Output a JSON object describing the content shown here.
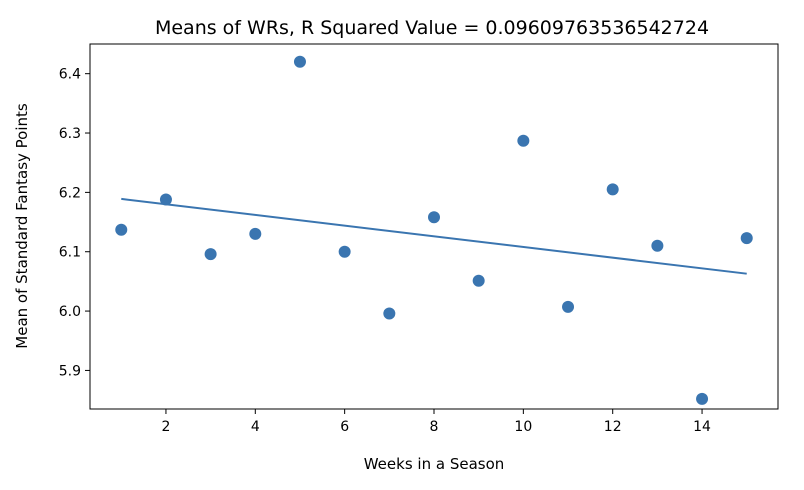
{
  "chart_data": {
    "type": "scatter",
    "title": "Means of WRs, R Squared Value = 0.09609763536542724",
    "xlabel": "Weeks in a Season",
    "ylabel": "Mean of Standard Fantasy Points",
    "xlim": [
      0.3,
      15.7
    ],
    "ylim": [
      5.835,
      6.45
    ],
    "x_ticks": [
      2,
      4,
      6,
      8,
      10,
      12,
      14
    ],
    "y_ticks": [
      5.9,
      6.0,
      6.1,
      6.2,
      6.3,
      6.4
    ],
    "x_tick_labels": [
      "2",
      "4",
      "6",
      "8",
      "10",
      "12",
      "14"
    ],
    "y_tick_labels": [
      "5.9",
      "6.0",
      "6.1",
      "6.2",
      "6.3",
      "6.4"
    ],
    "grid": false,
    "series": [
      {
        "x": [
          1,
          2,
          3,
          4,
          5,
          6,
          7,
          8,
          9,
          10,
          11,
          12,
          13,
          14,
          15
        ],
        "y": [
          6.137,
          6.188,
          6.096,
          6.13,
          6.42,
          6.1,
          5.996,
          6.158,
          6.051,
          6.287,
          6.007,
          6.205,
          6.11,
          5.852,
          6.123
        ]
      }
    ],
    "trendline": {
      "x": [
        1,
        15
      ],
      "y": [
        6.189,
        6.063
      ]
    },
    "color": "#3a75b0"
  }
}
